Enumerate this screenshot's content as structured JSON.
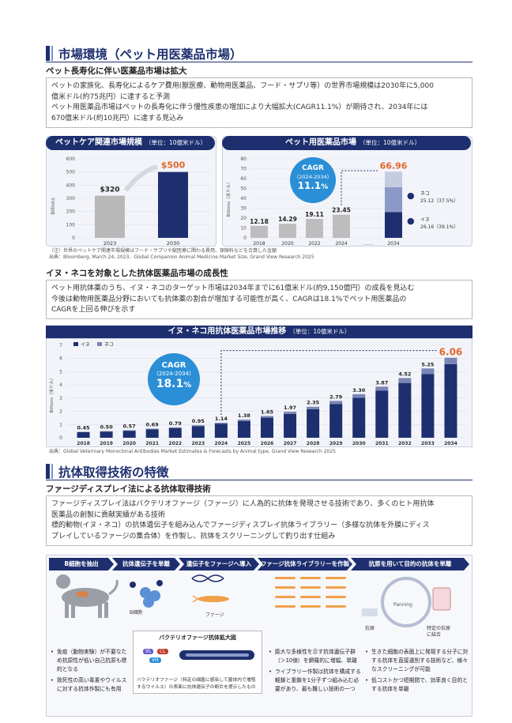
{
  "section1": {
    "title": "市場環境（ペット用医薬品市場）",
    "subtitle": "ペット長寿化に伴い医薬品市場は拡大",
    "text_lines": [
      "ペットの家族化、長寿化によるケア費用(獣医療、動物用医薬品、フード・サプリ等）の世界市場規模は2030年に5,000",
      "億米ドル(約75兆円）に達すると予測",
      "ペット用医薬品市場はペットの長寿化に伴う慢性疾患の増加により大幅拡大(CAGR11.1%）が期待され、2034年には",
      "670億米ドル(約10兆円）に達する見込み"
    ]
  },
  "petcare_chart": {
    "title": "ペットケア関連市場規模",
    "unit": "（単位：10億米ドル）",
    "yaxis_label": "Billions",
    "note": "（注）世界のペットケア関連市場規模はフード・サプリや獣医療に関わる費用、保険料などを合算した金額"
  },
  "petmed_chart": {
    "title": "ペット用医薬品市場",
    "unit": "（単位：10億米ドル）",
    "yaxis_label": "Billions（米ドル）",
    "cagr_label": "CAGR",
    "cagr_period": "（2024-2034）",
    "cagr_value": "11.1",
    "cagr_pct": "%",
    "ellipsis": "……",
    "cat_label": "ネコ",
    "cat_value": "25.12（37.5%）",
    "dog_label": "イヌ",
    "dog_value": "26.16（39.1%）"
  },
  "source1": "出典：Bloomberg, March 24, 2023、Global Companion Animal Medicine Market Size, Grand View Research 2025",
  "section2": {
    "subtitle": "イヌ・ネコを対象とした抗体医薬品市場の成長性",
    "text_lines": [
      "ペット用抗体薬のうち、イヌ・ネコのターゲット市場は2034年までに61億米ドル(約9,150億円）の成長を見込む",
      "今後は動物用医薬品分野においても抗体薬の割合が増加する可能性が高く、CAGRは18.1%でペット用医薬品の",
      "CAGRを上回る伸びを示す"
    ]
  },
  "antibody_chart": {
    "title": "イヌ・ネコ用抗体医薬品市場推移",
    "unit": "（単位：10億米ドル）",
    "yaxis_label": "Billions（米ドル）",
    "legend_dog": "イヌ",
    "legend_cat": "ネコ",
    "cagr_label": "CAGR",
    "cagr_period": "（2024-2034）",
    "cagr_value": "18.1",
    "cagr_pct": "%"
  },
  "source2": "出典：Global Veterinary Monoclonal Antibodies Market Estimates & Forecasts by Animal type, Grand View Research 2025",
  "section3": {
    "title": "抗体取得技術の特徴",
    "subtitle": "ファージディスプレイ法による抗体取得技術",
    "text_lines": [
      "ファージディスプレイ法はバクテリオファージ（ファージ）に人為的に抗体を発現させる技術であり、多くのヒト用抗体",
      "医薬品の創製に貢献実績がある技術",
      "標的動物(イヌ・ネコ）の抗体遺伝子を組み込んでファージディスプレイ抗体ライブラリー（多様な抗体を外膜にディス",
      "プレイしているファージの集合体）を作製し、抗体をスクリーニングして釣り出す仕組み"
    ]
  },
  "process": {
    "steps": [
      "B細胞を抽出",
      "抗体遺伝子を単離",
      "遺伝子をファージへ導入",
      "ファージ抗体ライブラリーを作製",
      "抗原を用いて目的の抗体を単離"
    ],
    "b_cell_label": "B細胞",
    "phage_label": "ファージ",
    "panning_label": "Panning",
    "antigen_label": "抗原",
    "specific_label_1": "特定の抗原",
    "specific_label_2": "に結合",
    "enlarged_title": "バクテリオファージ抗体拡大図",
    "vl": "VL",
    "cl": "CL",
    "vh": "VH",
    "enlarged_note_1": "バクテリオファージ（特定の細菌に感染して菌体内で増殖",
    "enlarged_note_2": "するウイルス）の表面に抗体遺伝子の断片を提示したもの",
    "bullets_left": [
      "免疫（動物実験）が不要なため抗原性が低い自己抗原も標的となる",
      "致死性の高い毒素やウイルスに対する抗体作製にも有用"
    ],
    "bullets_mid": [
      "膨大な多様性を示す抗体遺伝子群（＞10億）を網羅的に増幅、単離",
      "ライブラリー作製は抗体を構成する軽鎖と重鎖を1分子ずつ組み込む必要があり、最も難しい技術の一つ"
    ],
    "bullets_right": [
      "生きた細胞の表面上に発現する分子に対する抗体を直接選別する技術など、様々なスクリーニングが可能",
      "低コストかつ短期間で、効率良く目的とする抗体を単離"
    ]
  },
  "chart_data": [
    {
      "type": "bar",
      "title": "ペットケア関連市場規模",
      "categories": [
        "2023",
        "2030"
      ],
      "values": [
        320,
        500
      ],
      "labels": [
        "$320",
        "$500"
      ],
      "ylabel": "Billions",
      "ylim": [
        0,
        600
      ],
      "yticks": [
        0,
        100,
        200,
        300,
        400,
        500,
        600
      ],
      "colors": [
        "#b8b8b8",
        "#1d2f6f"
      ]
    },
    {
      "type": "bar",
      "title": "ペット用医薬品市場",
      "categories": [
        "2018",
        "2020",
        "2022",
        "2024",
        "2034"
      ],
      "values": [
        12.18,
        14.29,
        19.11,
        23.45,
        66.96
      ],
      "ylabel": "Billions（米ドル）",
      "ylim": [
        0,
        80
      ],
      "yticks": [
        0,
        10,
        20,
        30,
        40,
        50,
        60,
        70,
        80
      ],
      "breakdown_2034": {
        "イヌ": 26.16,
        "ネコ": 25.12,
        "その他": 15.68
      },
      "cagr": 11.1
    },
    {
      "type": "bar",
      "title": "イヌ・ネコ用抗体医薬品市場推移",
      "categories": [
        "2018",
        "2019",
        "2020",
        "2021",
        "2022",
        "2023",
        "2024",
        "2025",
        "2026",
        "2027",
        "2028",
        "2029",
        "2030",
        "2031",
        "2032",
        "2033",
        "2034"
      ],
      "totals": [
        0.45,
        0.5,
        0.57,
        0.69,
        0.79,
        0.95,
        1.14,
        1.38,
        1.65,
        1.97,
        2.35,
        2.79,
        3.3,
        3.87,
        4.52,
        5.25,
        6.06
      ],
      "series": [
        {
          "name": "イヌ",
          "values": [
            0.42,
            0.47,
            0.53,
            0.64,
            0.73,
            0.88,
            1.05,
            1.27,
            1.52,
            1.81,
            2.16,
            2.56,
            3.03,
            3.56,
            4.15,
            4.82,
            5.57
          ]
        },
        {
          "name": "ネコ",
          "values": [
            0.03,
            0.03,
            0.04,
            0.05,
            0.06,
            0.07,
            0.09,
            0.11,
            0.13,
            0.16,
            0.19,
            0.23,
            0.27,
            0.31,
            0.37,
            0.43,
            0.49
          ]
        }
      ],
      "ylabel": "Billions（米ドル）",
      "ylim": [
        0,
        7
      ],
      "yticks": [
        0,
        1,
        2,
        3,
        4,
        5,
        6,
        7
      ],
      "cagr": 18.1,
      "colors": {
        "イヌ": "#1d2f6f",
        "ネコ": "#7a86b4"
      }
    }
  ]
}
